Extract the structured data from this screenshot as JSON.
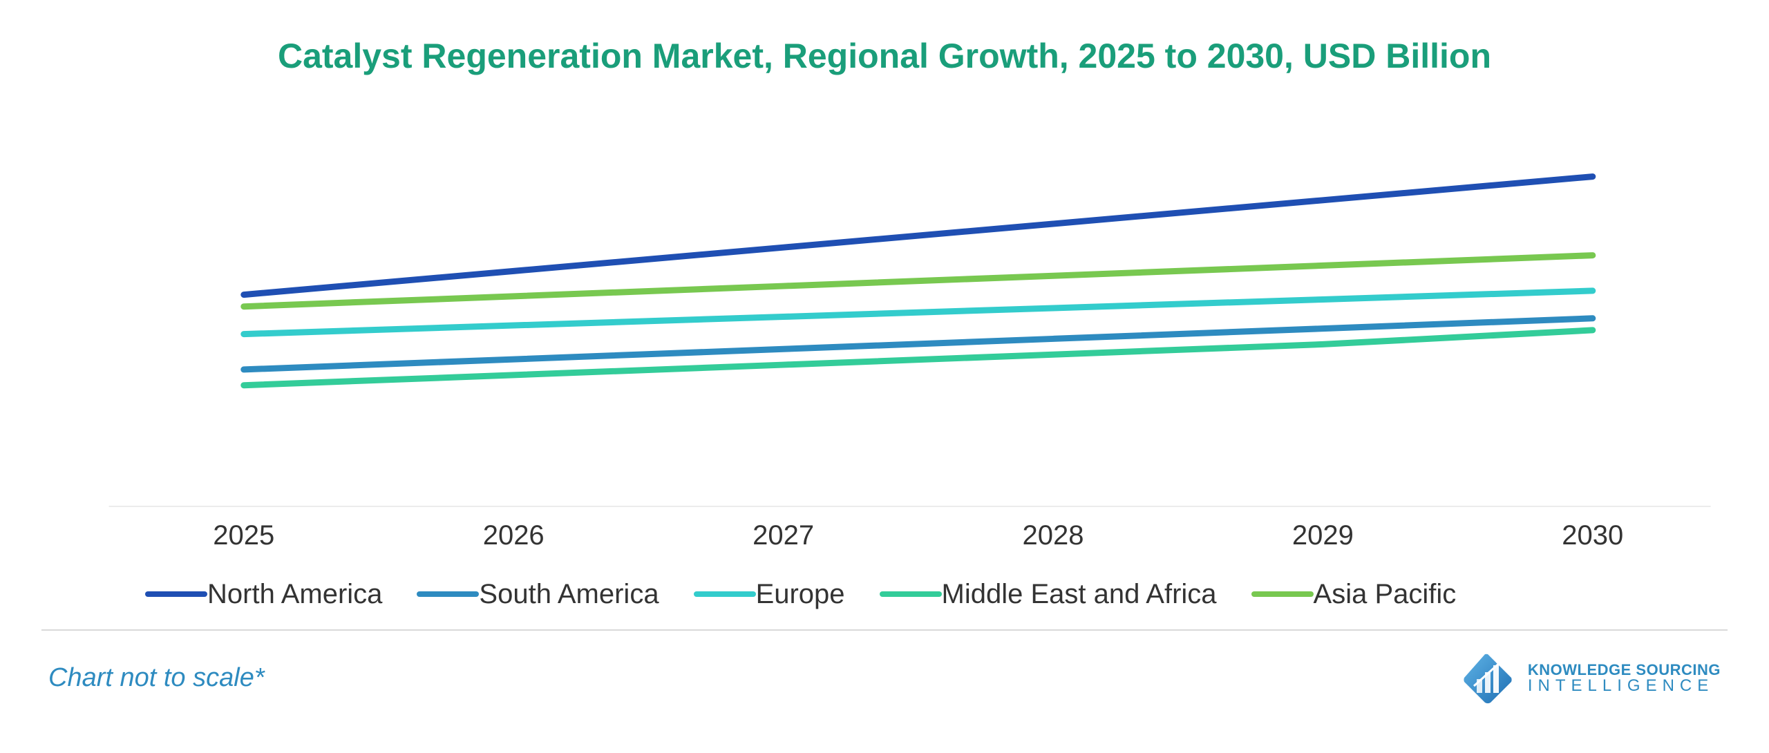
{
  "title": "Catalyst Regeneration Market, Regional Growth, 2025 to 2030, USD Billion",
  "title_color": "#1a9e7a",
  "disclaimer": "Chart not to scale*",
  "disclaimer_color": "#2e8bc0",
  "brand": {
    "line1": "KNOWLEDGE SOURCING",
    "line2": "INTELLIGENCE",
    "color": "#2e8bc0",
    "icon_color": "#2e8bc0"
  },
  "chart": {
    "type": "line",
    "background_color": "#ffffff",
    "axis_color": "#d9d9d9",
    "x_categories": [
      "2025",
      "2026",
      "2027",
      "2028",
      "2029",
      "2030"
    ],
    "x_font_size": 40,
    "y_range": [
      0,
      100
    ],
    "line_width": 9,
    "plot_left_pct": 12.0,
    "plot_right_pct": 92.0,
    "series": [
      {
        "name": "North America",
        "color": "#1f4fb3",
        "values": [
          52,
          58,
          64,
          70,
          76,
          82
        ]
      },
      {
        "name": "South America",
        "color": "#2e8bc0",
        "values": [
          33,
          35.6,
          38.2,
          40.8,
          43.4,
          46
        ]
      },
      {
        "name": "Europe",
        "color": "#33cccc",
        "values": [
          42,
          44.2,
          46.4,
          48.6,
          50.8,
          53
        ]
      },
      {
        "name": "Middle East and Africa",
        "color": "#33cc99",
        "values": [
          29,
          31.6,
          34.2,
          36.8,
          39.4,
          43
        ]
      },
      {
        "name": "Asia Pacific",
        "color": "#78c850",
        "values": [
          49,
          51.6,
          54.2,
          56.8,
          59.4,
          62
        ]
      }
    ],
    "legend_order": [
      0,
      1,
      2,
      3,
      4
    ],
    "legend_font_size": 40,
    "legend_swatch_height": 8
  }
}
